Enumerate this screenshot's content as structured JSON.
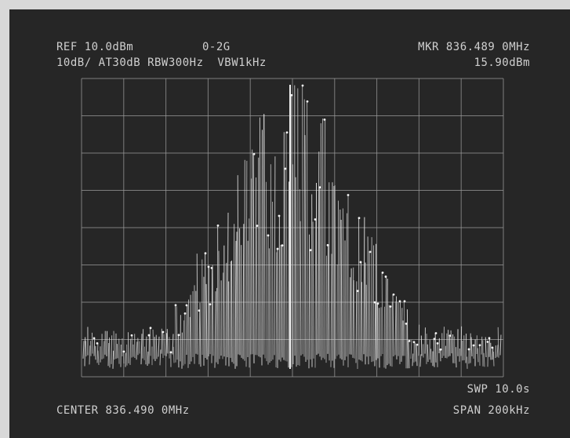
{
  "screen": {
    "header": {
      "reference": "REF 10.0dBm",
      "band": "0-2G",
      "marker": "MKR 836.489 0MHz",
      "settings": "10dB/ AT30dB RBW300Hz  VBW1kHz",
      "marker_level": "15.90dBm"
    },
    "footer": {
      "sweep": "SWP 10.0s",
      "center": "CENTER 836.490 0MHz",
      "span": "SPAN 200kHz"
    }
  }
}
